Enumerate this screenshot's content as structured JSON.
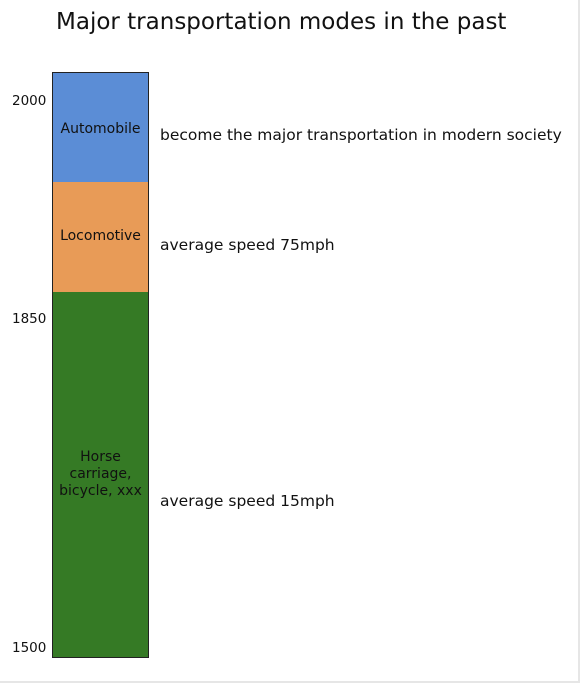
{
  "title": "Major transportation modes in the past",
  "colors": {
    "automobile": "#5b8dd6",
    "locomotive": "#e89b57",
    "horse": "#357a25"
  },
  "years": [
    "2000",
    "1850",
    "1500"
  ],
  "periods": [
    {
      "label": "Automobile",
      "note": "become the major transportation in modern society"
    },
    {
      "label": "Locomotive",
      "note": "average speed 75mph"
    },
    {
      "label": "Horse carriage, bicycle, xxx",
      "note": "average speed 15mph"
    }
  ]
}
